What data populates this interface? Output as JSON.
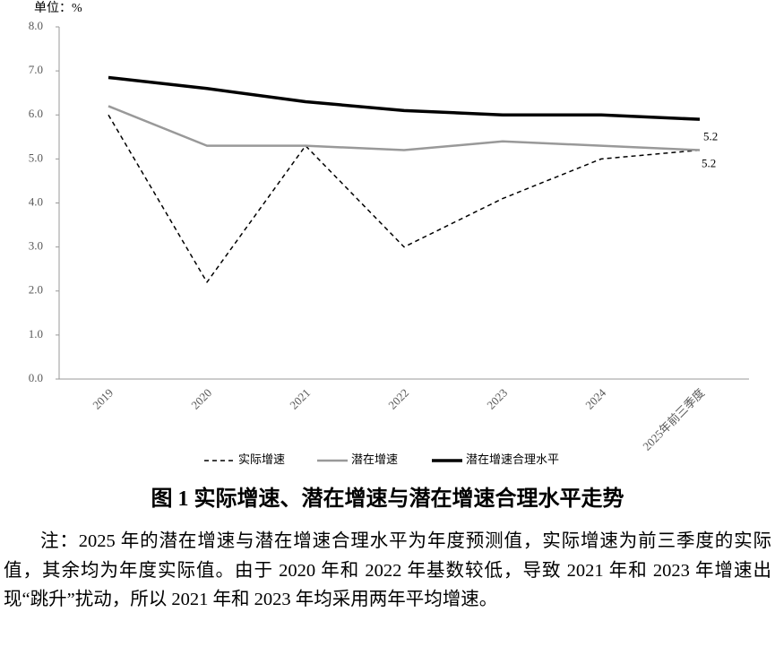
{
  "chart_data": {
    "type": "line",
    "title": "图 1  实际增速、潜在增速与潜在增速合理水平走势",
    "unit": "单位：%",
    "categories": [
      "2019",
      "2020",
      "2021",
      "2022",
      "2023",
      "2024",
      "2025年前三季度"
    ],
    "series": [
      {
        "name": "实际增速",
        "color": "#000000",
        "line_style": "dashed",
        "line_width": 1.5,
        "values": [
          6.0,
          2.2,
          5.3,
          3.0,
          4.1,
          5.0,
          5.2
        ]
      },
      {
        "name": "潜在增速",
        "color": "#999999",
        "line_style": "solid",
        "line_width": 2.5,
        "values": [
          6.2,
          5.3,
          5.3,
          5.2,
          5.4,
          5.3,
          5.2
        ]
      },
      {
        "name": "潜在增速合理水平",
        "color": "#000000",
        "line_style": "solid",
        "line_width": 3.5,
        "values": [
          6.85,
          6.6,
          6.3,
          6.1,
          6.0,
          6.0,
          5.9
        ]
      }
    ],
    "ylim": [
      0,
      8
    ],
    "yticks": [
      {
        "value": 0,
        "label": "0.0"
      },
      {
        "value": 1,
        "label": "1.0"
      },
      {
        "value": 2,
        "label": "2.0"
      },
      {
        "value": 3,
        "label": "3.0"
      },
      {
        "value": 4,
        "label": "4.0"
      },
      {
        "value": 5,
        "label": "5.0"
      },
      {
        "value": 6,
        "label": "6.0"
      },
      {
        "value": 7,
        "label": "7.0"
      },
      {
        "value": 8,
        "label": "8.0"
      }
    ],
    "grid": false,
    "legend": "bottom"
  },
  "note": "注：2025 年的潜在增速与潜在增速合理水平为年度预测值，实际增速为前三季度的实际值，其余均为年度实际值。由于 2020 年和 2022 年基数较低，导致 2021 年和 2023 年增速出现“跳升”扰动，所以 2021 年和 2023 年均采用两年平均增速。"
}
